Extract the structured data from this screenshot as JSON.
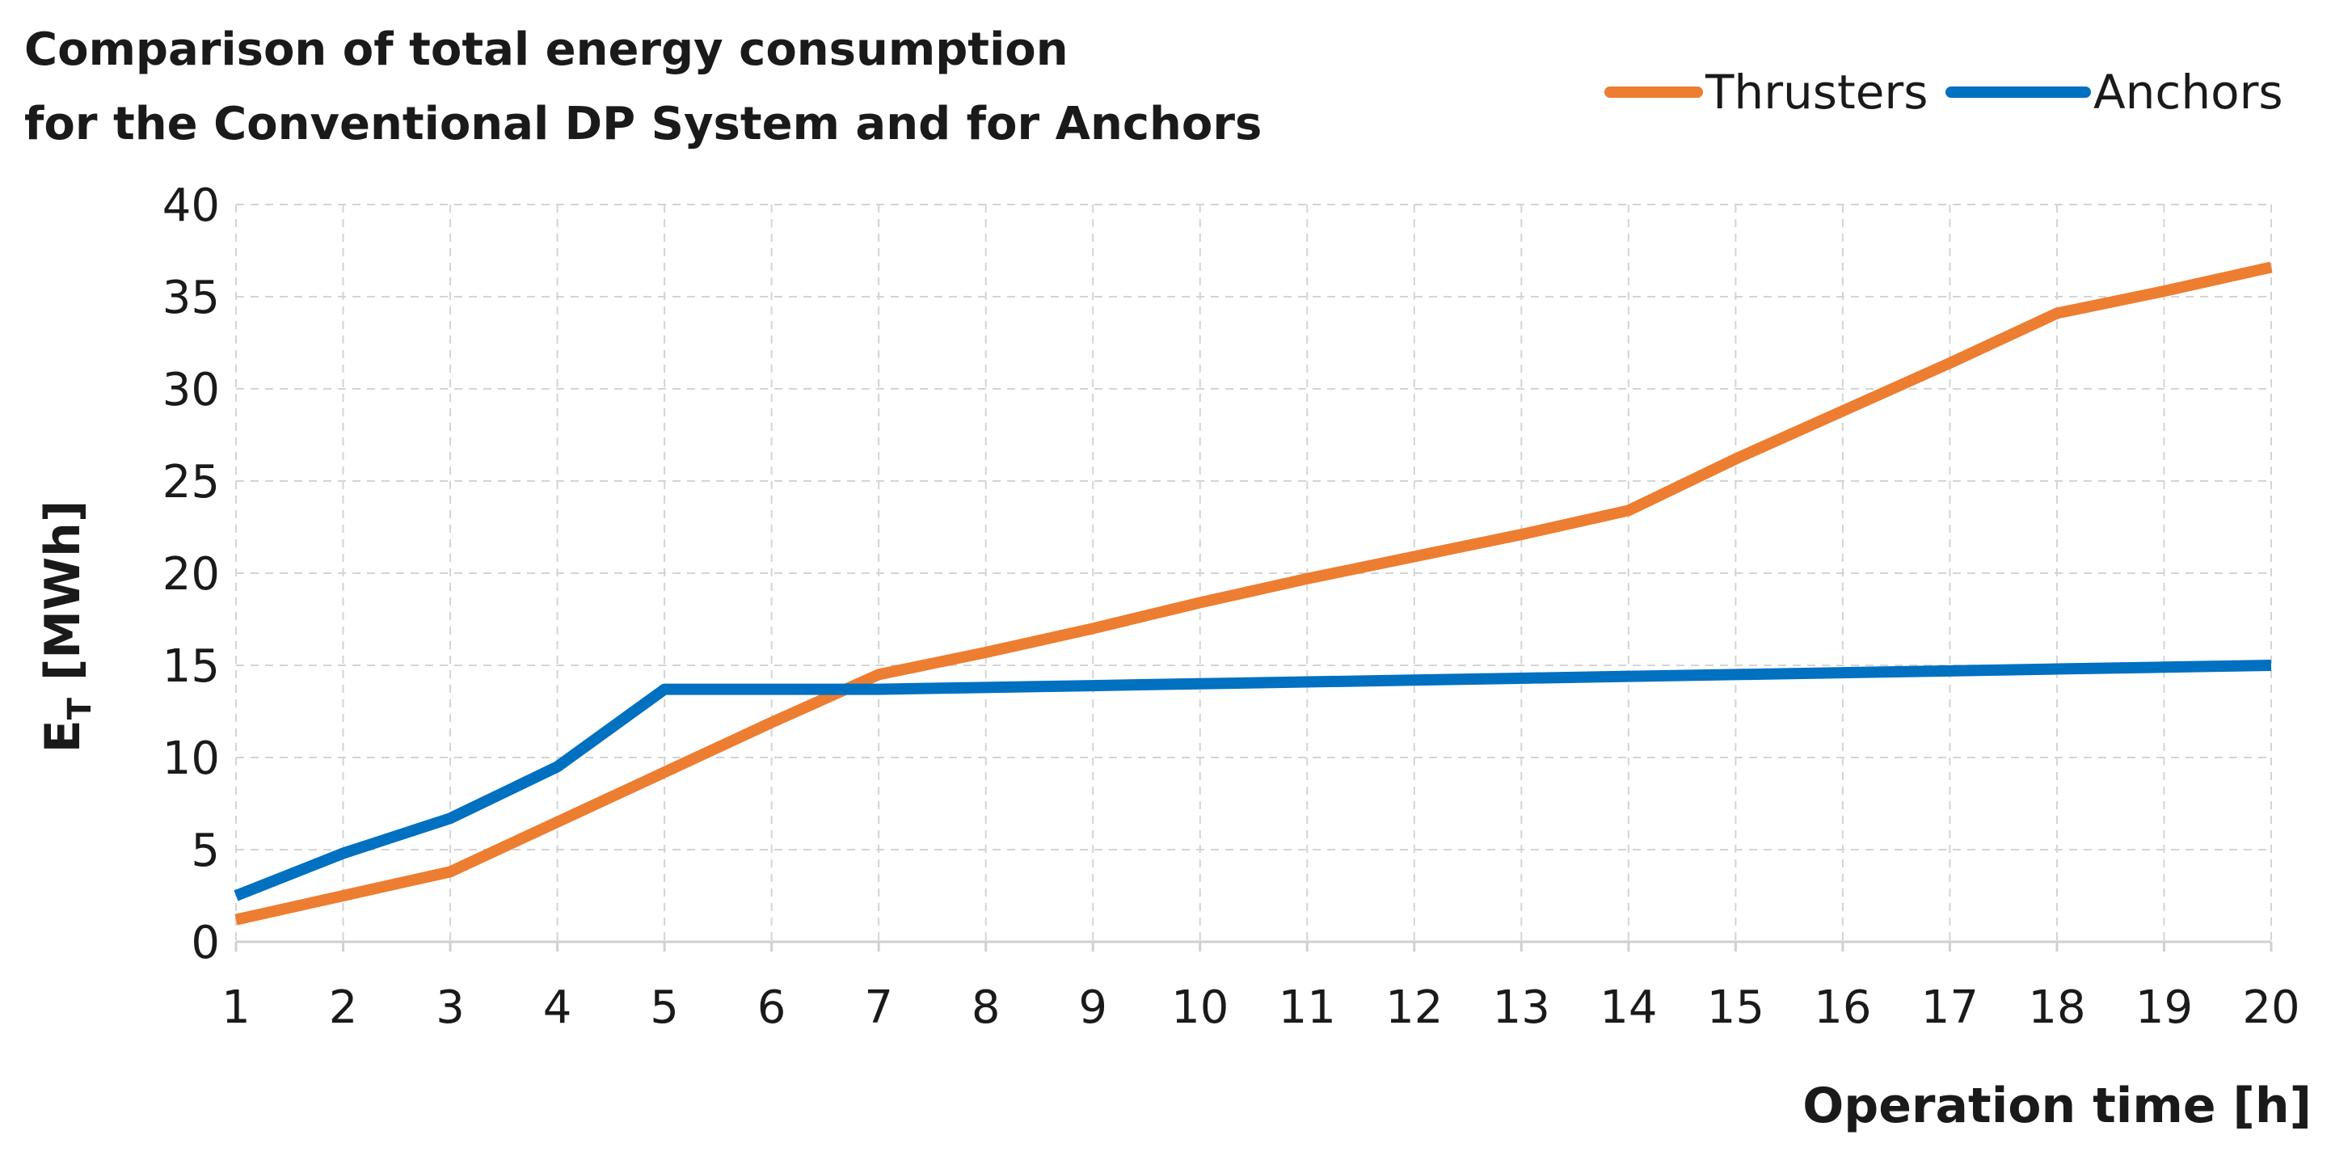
{
  "chart_data": {
    "type": "line",
    "title": [
      "Comparison of total energy consumption",
      "for the Conventional DP System and for Anchors"
    ],
    "xlabel": "Operation time [h]",
    "ylabel": {
      "main": "E",
      "subscript": "T",
      "unit": " [MWh]"
    },
    "x": [
      1,
      2,
      3,
      4,
      5,
      6,
      7,
      8,
      9,
      10,
      11,
      12,
      13,
      14,
      15,
      16,
      17,
      18,
      19,
      20
    ],
    "x_tick_labels": [
      "1",
      "2",
      "3",
      "4",
      "5",
      "6",
      "7",
      "8",
      "9",
      "10",
      "11",
      "12",
      "13",
      "14",
      "15",
      "16",
      "17",
      "18",
      "19",
      "20"
    ],
    "ylim": [
      0,
      40
    ],
    "y_ticks": [
      0,
      5,
      10,
      15,
      20,
      25,
      30,
      35,
      40
    ],
    "y_tick_labels": [
      "0",
      "5",
      "10",
      "15",
      "20",
      "25",
      "30",
      "35",
      "40"
    ],
    "grid": true,
    "legend_position": "top-right",
    "series": [
      {
        "name": "Thrusters",
        "color": "#ED7D31",
        "values": [
          1.2,
          2.5,
          3.8,
          6.5,
          9.2,
          11.9,
          14.5,
          15.7,
          17.0,
          18.4,
          19.7,
          20.9,
          22.1,
          23.4,
          26.2,
          28.8,
          31.4,
          34.1,
          35.3,
          36.6
        ]
      },
      {
        "name": "Anchors",
        "color": "#0070C0",
        "values": [
          2.5,
          4.8,
          6.7,
          9.5,
          13.7,
          13.7,
          13.7,
          13.8,
          13.9,
          14.0,
          14.1,
          14.2,
          14.3,
          14.4,
          14.5,
          14.6,
          14.7,
          14.8,
          14.9,
          15.0
        ]
      }
    ]
  }
}
